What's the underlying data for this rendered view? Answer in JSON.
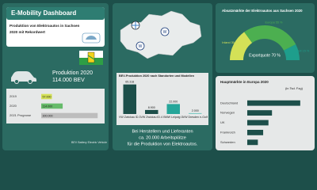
{
  "header": {
    "title": "E-Mobility Dashboard",
    "subtitle_lines": [
      "Produktion von Elektroautos in Sachsen",
      "2020 mit Rekordwert"
    ]
  },
  "production": {
    "label": "Produktion 2020",
    "value": "114.000 BEV"
  },
  "footnote": "BEV Battery Electric Vehicle",
  "jobs_text": [
    "Bei Herstellern und Lieferanten",
    "ca. 20.000 Arbeitsplätze",
    "für die Produktion von Elektroautos."
  ],
  "chart_data": [
    {
      "type": "hbar",
      "categories": [
        "2019",
        "2020",
        "2021 Prognose"
      ],
      "values": [
        57000,
        114000,
        300000
      ],
      "value_labels": [
        "57.000",
        "114.000",
        "300.000"
      ],
      "colors": [
        "#d4e157",
        "#66bb6a",
        "#bdbdbd"
      ],
      "xlim": [
        0,
        320000
      ]
    },
    {
      "type": "bar",
      "title": "BEV-Produktion 2020 nach Standorten und Modellen",
      "categories": [
        "VW Zwickau ID.3",
        "VW Zwickau ID.4",
        "BMW Leipzig i3",
        "VW Dresden e-Golf"
      ],
      "values": [
        65318,
        8900,
        22000,
        2000
      ],
      "value_labels": [
        "65.318",
        "8.900",
        "22.000",
        "2.000"
      ],
      "colors": [
        "#1d4f4a",
        "#1d4f4a",
        "#26a69a",
        "#80cbc4"
      ],
      "ylim": [
        0,
        70000
      ]
    },
    {
      "type": "gauge",
      "title": "Absatzmärkte der Elektroautos aus Sachsen 2020",
      "categories": [
        "Inland",
        "Europa",
        "Rest der Welt"
      ],
      "values": [
        30,
        55,
        15
      ],
      "value_labels": [
        "Inland 30 %",
        "Europa 55 %",
        "Welt 15 %"
      ],
      "colors": [
        "#d4e157",
        "#4caf50",
        "#1e9e8c"
      ],
      "annotation": "Exportquote 70 %"
    },
    {
      "type": "hbar",
      "title": "Hauptmärkte in Europa 2020",
      "unit": "(in Tsd. Fzg)",
      "categories": [
        "Deutschland",
        "Norwegen",
        "UK",
        "Frankreich",
        "Schweden"
      ],
      "values": [
        30,
        14,
        12,
        9,
        6
      ],
      "colors": [
        "#1d4f4a",
        "#1d4f4a",
        "#1d4f4a",
        "#1d4f4a",
        "#1d4f4a"
      ],
      "xlim": [
        0,
        35
      ]
    }
  ]
}
